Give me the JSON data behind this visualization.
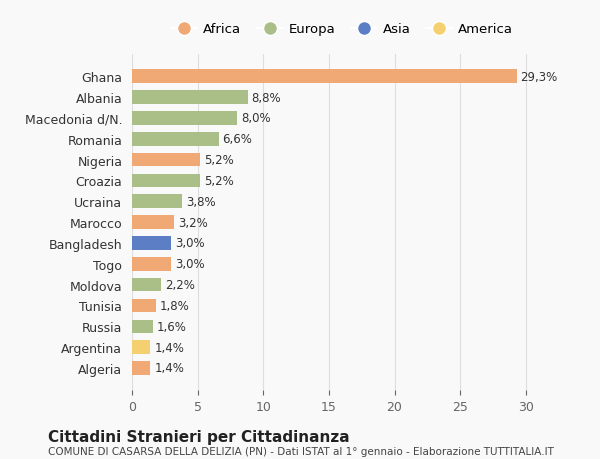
{
  "countries": [
    "Algeria",
    "Argentina",
    "Russia",
    "Tunisia",
    "Moldova",
    "Togo",
    "Bangladesh",
    "Marocco",
    "Ucraina",
    "Croazia",
    "Nigeria",
    "Romania",
    "Macedonia d/N.",
    "Albania",
    "Ghana"
  ],
  "values": [
    1.4,
    1.4,
    1.6,
    1.8,
    2.2,
    3.0,
    3.0,
    3.2,
    3.8,
    5.2,
    5.2,
    6.6,
    8.0,
    8.8,
    29.3
  ],
  "labels": [
    "1,4%",
    "1,4%",
    "1,6%",
    "1,8%",
    "2,2%",
    "3,0%",
    "3,0%",
    "3,2%",
    "3,8%",
    "5,2%",
    "5,2%",
    "6,6%",
    "8,0%",
    "8,8%",
    "29,3%"
  ],
  "continents": [
    "Africa",
    "America",
    "Europa",
    "Africa",
    "Europa",
    "Africa",
    "Asia",
    "Africa",
    "Europa",
    "Europa",
    "Africa",
    "Europa",
    "Europa",
    "Europa",
    "Africa"
  ],
  "colors": {
    "Africa": "#F0A875",
    "Europa": "#AABF88",
    "Asia": "#5B7EC4",
    "America": "#F5D070"
  },
  "legend_order": [
    "Africa",
    "Europa",
    "Asia",
    "America"
  ],
  "title": "Cittadini Stranieri per Cittadinanza",
  "subtitle": "COMUNE DI CASARSA DELLA DELIZIA (PN) - Dati ISTAT al 1° gennaio - Elaborazione TUTTITALIA.IT",
  "xlim": [
    0,
    32
  ],
  "xticks": [
    0,
    5,
    10,
    15,
    20,
    25,
    30
  ],
  "background_color": "#f9f9f9",
  "bar_height": 0.65
}
